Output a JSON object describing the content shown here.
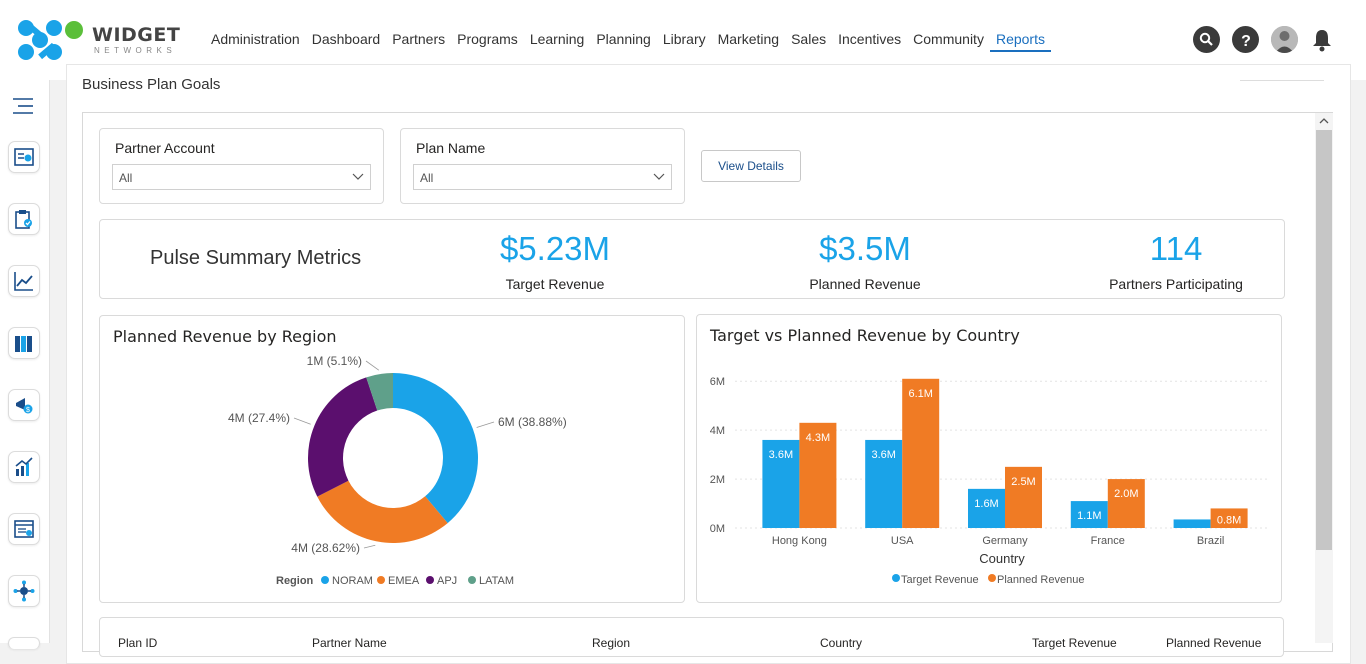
{
  "app": {
    "logo_word": "WIDGET",
    "logo_sub": "NETWORKS",
    "brand_colors": [
      "#1aa3e8",
      "#5bbf3a",
      "#1a6fbf"
    ]
  },
  "nav": {
    "items": [
      {
        "label": "Administration"
      },
      {
        "label": "Dashboard"
      },
      {
        "label": "Partners"
      },
      {
        "label": "Programs"
      },
      {
        "label": "Learning"
      },
      {
        "label": "Planning"
      },
      {
        "label": "Library"
      },
      {
        "label": "Marketing"
      },
      {
        "label": "Sales"
      },
      {
        "label": "Incentives"
      },
      {
        "label": "Community"
      },
      {
        "label": "Reports",
        "active": true
      }
    ],
    "accent": "#1a6fbf"
  },
  "top_icons": [
    "search-icon",
    "help-icon",
    "user-avatar",
    "bell-icon"
  ],
  "sidebar": {
    "icons": [
      "menu-icon",
      "revenue-report-icon",
      "clipboard-check-icon",
      "line-chart-icon",
      "library-books-icon",
      "megaphone-dollar-icon",
      "growth-chart-icon",
      "web-report-icon",
      "network-icon"
    ]
  },
  "page": {
    "title": "Business Plan Goals"
  },
  "filters": {
    "partner_account": {
      "label": "Partner Account",
      "value": "All"
    },
    "plan_name": {
      "label": "Plan Name",
      "value": "All"
    },
    "view_details": "View Details"
  },
  "metrics": {
    "title": "Pulse Summary Metrics",
    "items": [
      {
        "value": "$5.23M",
        "label": "Target Revenue"
      },
      {
        "value": "$3.5M",
        "label": "Planned Revenue"
      },
      {
        "value": "114",
        "label": "Partners Participating"
      }
    ],
    "value_color": "#1aa3e8"
  },
  "chart_data": [
    {
      "type": "pie",
      "title": "Planned Revenue by Region",
      "legend_title": "Region",
      "legend_position": "bottom",
      "slices": [
        {
          "name": "NORAM",
          "value": 38.88,
          "label": "6M (38.88%)",
          "color": "#1aa3e8"
        },
        {
          "name": "EMEA",
          "value": 28.62,
          "label": "4M (28.62%)",
          "color": "#f07b24"
        },
        {
          "name": "APJ",
          "value": 27.4,
          "label": "4M (27.4%)",
          "color": "#5b0f6e"
        },
        {
          "name": "LATAM",
          "value": 5.1,
          "label": "1M (5.1%)",
          "color": "#5fa08a"
        }
      ]
    },
    {
      "type": "bar",
      "title": "Target vs Planned Revenue by Country",
      "xlabel": "Country",
      "ylabel": "",
      "ylim": [
        0,
        6.5
      ],
      "yticks": [
        "0M",
        "2M",
        "4M",
        "6M"
      ],
      "ytick_values": [
        0,
        2,
        4,
        6
      ],
      "grid": true,
      "legend_position": "bottom",
      "categories": [
        "Hong Kong",
        "USA",
        "Germany",
        "France",
        "Brazil"
      ],
      "series": [
        {
          "name": "Target Revenue",
          "color": "#1aa3e8",
          "values": [
            3.6,
            3.6,
            1.6,
            1.1,
            0.35
          ],
          "labels": [
            "3.6M",
            "3.6M",
            "1.6M",
            "1.1M",
            ""
          ]
        },
        {
          "name": "Planned Revenue",
          "color": "#f07b24",
          "values": [
            4.3,
            6.1,
            2.5,
            2.0,
            0.8
          ],
          "labels": [
            "4.3M",
            "6.1M",
            "2.5M",
            "2.0M",
            "0.8M"
          ]
        }
      ]
    }
  ],
  "table": {
    "headers": [
      "Plan ID",
      "Partner Name",
      "Region",
      "Country",
      "Target Revenue",
      "Planned Revenue"
    ]
  }
}
